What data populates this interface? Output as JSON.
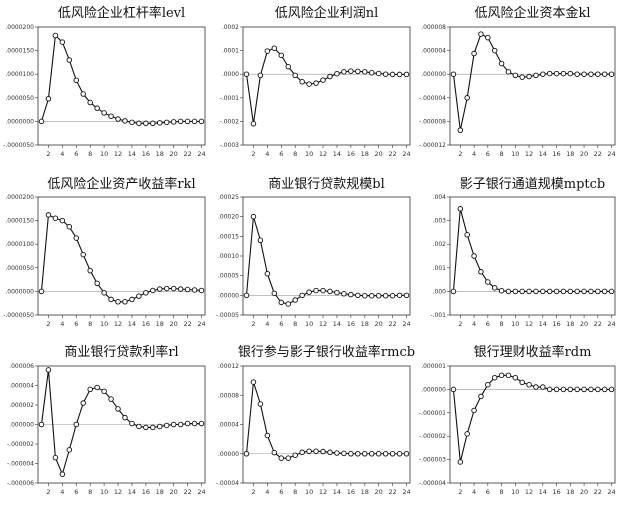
{
  "layout_grid": {
    "cols": 3,
    "rows": 3
  },
  "chart_data": [
    {
      "type": "line",
      "title": "低风险企业杠杆率levl",
      "x": [
        1,
        2,
        3,
        4,
        5,
        6,
        7,
        8,
        9,
        10,
        11,
        12,
        13,
        14,
        15,
        16,
        17,
        18,
        19,
        20,
        21,
        22,
        23,
        24
      ],
      "values": [
        0.0,
        4.8e-06,
        1.82e-05,
        1.68e-05,
        1.3e-05,
        8.7e-06,
        5.8e-06,
        4e-06,
        2.8e-06,
        1.8e-06,
        1.1e-06,
        5e-07,
        1e-07,
        -2e-07,
        -4e-07,
        -4e-07,
        -4e-07,
        -3e-07,
        -2e-07,
        -1e-07,
        0.0,
        0.0,
        0.0,
        0.0
      ],
      "ylim": [
        -5e-06,
        2e-05
      ],
      "yticks": [
        -5e-06,
        0.0,
        5e-06,
        1e-05,
        1.5e-05,
        2e-05
      ],
      "yticklabels": [
        "-.0000050",
        ".0000000",
        ".0000050",
        ".0000100",
        ".0000150",
        ".0000200"
      ],
      "xticks": [
        2,
        4,
        6,
        8,
        10,
        12,
        14,
        16,
        18,
        20,
        22,
        24
      ],
      "baseline": 0
    },
    {
      "type": "line",
      "title": "低风险企业利润nl",
      "x": [
        1,
        2,
        3,
        4,
        5,
        6,
        7,
        8,
        9,
        10,
        11,
        12,
        13,
        14,
        15,
        16,
        17,
        18,
        19,
        20,
        21,
        22,
        23,
        24
      ],
      "values": [
        0.0,
        -0.00021,
        -5e-06,
        9.8e-05,
        0.00011,
        8e-05,
        3.2e-05,
        -5e-06,
        -3.2e-05,
        -4.2e-05,
        -3.8e-05,
        -2.5e-05,
        -1e-05,
        2e-06,
        1e-05,
        1.3e-05,
        1.2e-05,
        1e-05,
        6e-06,
        3e-06,
        0.0,
        -1e-06,
        -1e-06,
        -1e-06
      ],
      "ylim": [
        -0.0003,
        0.0002
      ],
      "yticks": [
        -0.0003,
        -0.0002,
        -0.0001,
        0.0,
        0.0001,
        0.0002
      ],
      "yticklabels": [
        "-.0003",
        "-.0002",
        "-.0001",
        ".0000",
        ".0001",
        ".0002"
      ],
      "xticks": [
        2,
        4,
        6,
        8,
        10,
        12,
        14,
        16,
        18,
        20,
        22,
        24
      ],
      "baseline": 0
    },
    {
      "type": "line",
      "title": "低风险企业资本金kl",
      "x": [
        1,
        2,
        3,
        4,
        5,
        6,
        7,
        8,
        9,
        10,
        11,
        12,
        13,
        14,
        15,
        16,
        17,
        18,
        19,
        20,
        21,
        22,
        23,
        24
      ],
      "values": [
        0.0,
        -9.5e-06,
        -4e-06,
        3.5e-06,
        6.8e-06,
        6.2e-06,
        4e-06,
        1.8e-06,
        4e-07,
        -2e-07,
        -5e-07,
        -4e-07,
        -2e-07,
        0.0,
        1e-07,
        1e-07,
        1e-07,
        1e-07,
        0.0,
        0.0,
        0.0,
        0.0,
        0.0,
        0.0
      ],
      "ylim": [
        -1.2e-05,
        8e-06
      ],
      "yticks": [
        -1.2e-05,
        -8e-06,
        -4e-06,
        0.0,
        4e-06,
        8e-06
      ],
      "yticklabels": [
        "-.000012",
        "-.000008",
        "-.000004",
        ".000000",
        ".000004",
        ".000008"
      ],
      "xticks": [
        2,
        4,
        6,
        8,
        10,
        12,
        14,
        16,
        18,
        20,
        22,
        24
      ],
      "baseline": 0
    },
    {
      "type": "line",
      "title": "低风险企业资产收益率rkl",
      "x": [
        1,
        2,
        3,
        4,
        5,
        6,
        7,
        8,
        9,
        10,
        11,
        12,
        13,
        14,
        15,
        16,
        17,
        18,
        19,
        20,
        21,
        22,
        23,
        24
      ],
      "values": [
        0.0,
        1.62e-05,
        1.55e-05,
        1.5e-05,
        1.37e-05,
        1.13e-05,
        7.8e-06,
        4.4e-06,
        1.7e-06,
        -3e-07,
        -1.7e-06,
        -2.2e-06,
        -2.2e-06,
        -1.7e-06,
        -1e-06,
        -3e-07,
        2e-07,
        5e-07,
        6e-07,
        6e-07,
        5e-07,
        4e-07,
        3e-07,
        2e-07
      ],
      "ylim": [
        -5e-06,
        2e-05
      ],
      "yticks": [
        -5e-06,
        0.0,
        5e-06,
        1e-05,
        1.5e-05,
        2e-05
      ],
      "yticklabels": [
        "-.0000050",
        ".0000000",
        ".0000050",
        ".0000100",
        ".0000150",
        ".0000200"
      ],
      "xticks": [
        2,
        4,
        6,
        8,
        10,
        12,
        14,
        16,
        18,
        20,
        22,
        24
      ],
      "baseline": 0
    },
    {
      "type": "line",
      "title": "商业银行贷款规模bl",
      "x": [
        1,
        2,
        3,
        4,
        5,
        6,
        7,
        8,
        9,
        10,
        11,
        12,
        13,
        14,
        15,
        16,
        17,
        18,
        19,
        20,
        21,
        22,
        23,
        24
      ],
      "values": [
        0.0,
        0.0002,
        0.00014,
        5.5e-05,
        5e-06,
        -1.8e-05,
        -2.2e-05,
        -1.2e-05,
        0.0,
        8e-06,
        1.2e-05,
        1.2e-05,
        1e-05,
        7e-06,
        4e-06,
        2e-06,
        0.0,
        -1e-06,
        -1e-06,
        -1e-06,
        -1e-06,
        -1e-06,
        0.0,
        0.0
      ],
      "ylim": [
        -5e-05,
        0.00025
      ],
      "yticks": [
        -5e-05,
        0.0,
        5e-05,
        0.0001,
        0.00015,
        0.0002,
        0.00025
      ],
      "yticklabels": [
        "-.00005",
        ".00000",
        ".00005",
        ".00010",
        ".00015",
        ".00020",
        ".00025"
      ],
      "xticks": [
        2,
        4,
        6,
        8,
        10,
        12,
        14,
        16,
        18,
        20,
        22,
        24
      ],
      "baseline": 0
    },
    {
      "type": "line",
      "title": "影子银行通道规模mptcb",
      "x": [
        1,
        2,
        3,
        4,
        5,
        6,
        7,
        8,
        9,
        10,
        11,
        12,
        13,
        14,
        15,
        16,
        17,
        18,
        19,
        20,
        21,
        22,
        23,
        24
      ],
      "values": [
        0.0,
        0.0035,
        0.0024,
        0.0015,
        0.00083,
        0.0004,
        0.00015,
        3e-05,
        0.0,
        0.0,
        0.0,
        0.0,
        0.0,
        0.0,
        0.0,
        0.0,
        0.0,
        0.0,
        0.0,
        0.0,
        0.0,
        0.0,
        0.0,
        0.0
      ],
      "ylim": [
        -0.001,
        0.004
      ],
      "yticks": [
        -0.001,
        0.0,
        0.001,
        0.002,
        0.003,
        0.004
      ],
      "yticklabels": [
        "-.001",
        ".000",
        ".001",
        ".002",
        ".003",
        ".004"
      ],
      "xticks": [
        2,
        4,
        6,
        8,
        10,
        12,
        14,
        16,
        18,
        20,
        22,
        24
      ],
      "baseline": 0
    },
    {
      "type": "line",
      "title": "商业银行贷款利率rl",
      "x": [
        1,
        2,
        3,
        4,
        5,
        6,
        7,
        8,
        9,
        10,
        11,
        12,
        13,
        14,
        15,
        16,
        17,
        18,
        19,
        20,
        21,
        22,
        23,
        24
      ],
      "values": [
        0.0,
        5.6e-06,
        -3.4e-06,
        -5.1e-06,
        -2.6e-06,
        0.0,
        2.2e-06,
        3.6e-06,
        3.8e-06,
        3.4e-06,
        2.6e-06,
        1.6e-06,
        7e-07,
        1e-07,
        -2e-07,
        -3e-07,
        -3e-07,
        -2e-07,
        -1e-07,
        0.0,
        0.0,
        1e-07,
        1e-07,
        1e-07
      ],
      "ylim": [
        -6e-06,
        6e-06
      ],
      "yticks": [
        -6e-06,
        -4e-06,
        -2e-06,
        0.0,
        2e-06,
        4e-06,
        6e-06
      ],
      "yticklabels": [
        "-.000006",
        "-.000004",
        "-.000002",
        ".000000",
        ".000002",
        ".000004",
        ".000006"
      ],
      "xticks": [
        2,
        4,
        6,
        8,
        10,
        12,
        14,
        16,
        18,
        20,
        22,
        24
      ],
      "baseline": 0
    },
    {
      "type": "line",
      "title": "银行参与影子银行收益率rmcb",
      "x": [
        1,
        2,
        3,
        4,
        5,
        6,
        7,
        8,
        9,
        10,
        11,
        12,
        13,
        14,
        15,
        16,
        17,
        18,
        19,
        20,
        21,
        22,
        23,
        24
      ],
      "values": [
        0.0,
        9.8e-05,
        6.8e-05,
        2.5e-05,
        1.5e-06,
        -6e-06,
        -6e-06,
        -2e-06,
        2e-06,
        3.5e-06,
        3.5e-06,
        3e-06,
        2e-06,
        1e-06,
        5e-07,
        0.0,
        0.0,
        0.0,
        0.0,
        0.0,
        0.0,
        0.0,
        0.0,
        0.0
      ],
      "ylim": [
        -4e-05,
        0.00012
      ],
      "yticks": [
        -4e-05,
        0.0,
        4e-05,
        8e-05,
        0.00012
      ],
      "yticklabels": [
        "-.00004",
        ".00000",
        ".00004",
        ".00008",
        ".00012"
      ],
      "xticks": [
        2,
        4,
        6,
        8,
        10,
        12,
        14,
        16,
        18,
        20,
        22,
        24
      ],
      "baseline": 0
    },
    {
      "type": "line",
      "title": "银行理财收益率rdm",
      "x": [
        1,
        2,
        3,
        4,
        5,
        6,
        7,
        8,
        9,
        10,
        11,
        12,
        13,
        14,
        15,
        16,
        17,
        18,
        19,
        20,
        21,
        22,
        23,
        24
      ],
      "values": [
        0.0,
        -3.1e-06,
        -1.9e-06,
        -9e-07,
        -3e-07,
        2e-07,
        5e-07,
        6e-07,
        6e-07,
        5e-07,
        3e-07,
        2e-07,
        1e-07,
        1e-07,
        0.0,
        0.0,
        0.0,
        0.0,
        0.0,
        0.0,
        0.0,
        0.0,
        0.0,
        0.0
      ],
      "ylim": [
        -4e-06,
        1e-06
      ],
      "yticks": [
        -4e-06,
        -3e-06,
        -2e-06,
        -1e-06,
        0.0,
        1e-06
      ],
      "yticklabels": [
        "-.000004",
        "-.000003",
        "-.000002",
        "-.000001",
        ".000000",
        ".000001"
      ],
      "xticks": [
        2,
        4,
        6,
        8,
        10,
        12,
        14,
        16,
        18,
        20,
        22,
        24
      ],
      "baseline": 0
    }
  ]
}
